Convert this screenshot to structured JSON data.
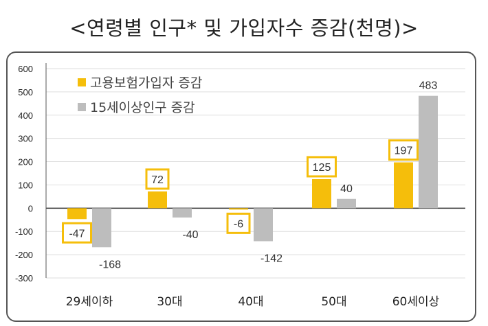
{
  "title": "<연령별 인구* 및 가입자수 증감(천명)>",
  "chart_data": {
    "type": "bar",
    "title": "<연령별 인구* 및 가입자수 증감(천명)>",
    "categories": [
      "29세이하",
      "30대",
      "40대",
      "50대",
      "60세이상"
    ],
    "series": [
      {
        "name": "고용보험가입자 증감",
        "values": [
          -47,
          72,
          -6,
          125,
          197
        ],
        "color": "#F5BE0B"
      },
      {
        "name": "15세이상인구 증감",
        "values": [
          -168,
          -40,
          -142,
          40,
          483
        ],
        "color": "#BDBDBD"
      }
    ],
    "yticks": [
      "600",
      "500",
      "400",
      "300",
      "200",
      "100",
      "0",
      "-100",
      "-200",
      "-300"
    ],
    "ylim": [
      -300,
      600
    ],
    "grid": true,
    "legend": "top-left",
    "data_labels": {
      "series0": [
        "-47",
        "72",
        "-6",
        "125",
        "197"
      ],
      "series1": [
        "-168",
        "-40",
        "-142",
        "40",
        "483"
      ]
    },
    "xlabel": "",
    "ylabel": ""
  }
}
